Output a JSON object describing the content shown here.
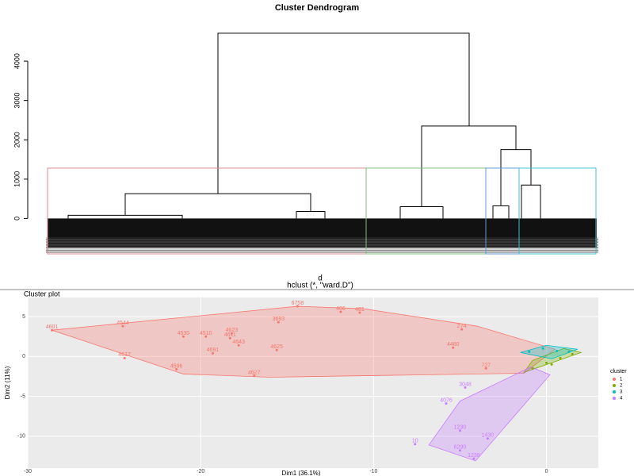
{
  "chart_data": [
    {
      "type": "dendrogram",
      "title": "Cluster Dendrogram",
      "xlabel": "d",
      "subtitle": "hclust (*, \"ward.D\")",
      "ylim": [
        -900,
        4950
      ],
      "yticks": [
        0,
        1000,
        2000,
        3000,
        4000
      ],
      "merge_heights": [
        4710,
        630,
        2350,
        1750,
        300,
        320,
        850,
        80,
        180
      ],
      "cut_height": 1280,
      "cluster_colors": [
        "#d98c8c",
        "#7fbf7f",
        "#5b9bd5",
        "#40c0d0"
      ]
    },
    {
      "type": "cluster",
      "title": "Cluster plot",
      "xlabel": "Dim1 (36.1%)",
      "ylabel": "Dim2 (11%)",
      "xlim": [
        -30,
        3
      ],
      "ylim": [
        -14,
        7.4
      ],
      "xticks": [
        -30,
        -20,
        -10,
        0
      ],
      "yticks": [
        -10,
        -5,
        0,
        5
      ],
      "grid": true,
      "legend_title": "cluster",
      "legend": "right",
      "series": [
        {
          "name": "1",
          "color": "#f8766d",
          "hull_x": [
            -28.6,
            -14.4,
            -10.6,
            -4,
            0.5,
            -1.3,
            -16,
            -21
          ],
          "hull_y": [
            3.3,
            6.3,
            6.0,
            3.8,
            0.9,
            -2.1,
            -2.6,
            -2.2
          ],
          "x": [
            -28.6,
            -24.5,
            -14.4,
            -11.9,
            -10.8,
            -15.5,
            -21,
            -19.7,
            -18.2,
            -18.3,
            -17.8,
            -24.4,
            -21.4,
            -16.9,
            -19.3,
            -15.6,
            -3.5,
            -4.9,
            -5.4
          ],
          "y": [
            3.3,
            3.8,
            6.3,
            5.6,
            5.5,
            4.3,
            2.5,
            2.5,
            2.9,
            2.3,
            1.4,
            -0.2,
            -1.6,
            -2.4,
            0.4,
            0.8,
            -1.5,
            3.4,
            1.1
          ],
          "labels": [
            "4601",
            "4544",
            "6758",
            "406",
            "481",
            "3693",
            "4530",
            "4510",
            "4623",
            "4611",
            "4643",
            "4617",
            "4596",
            "4627",
            "4691",
            "4625",
            "727",
            "274",
            "4480"
          ]
        },
        {
          "name": "2",
          "color": "#7cae00",
          "hull_x": [
            -1.3,
            2,
            1,
            -0.8
          ],
          "hull_y": [
            -2,
            0.5,
            1,
            -0.5
          ],
          "x": [
            -0.8,
            0,
            0.8,
            1.5,
            0.3
          ],
          "y": [
            -1.5,
            -0.8,
            -0.2,
            0.3,
            -1.0
          ]
        },
        {
          "name": "3",
          "color": "#00bfc4",
          "hull_x": [
            -1.5,
            0,
            1.8,
            0.3
          ],
          "hull_y": [
            0.5,
            1.4,
            0.9,
            -0.3
          ],
          "x": [
            -1,
            -0.2,
            0.6,
            1.3
          ],
          "y": [
            0.6,
            1.0,
            0.7,
            0.6
          ]
        },
        {
          "name": "4",
          "color": "#c77cff",
          "hull_x": [
            -6.8,
            -4.1,
            0.2,
            -0.9,
            -5
          ],
          "hull_y": [
            -11.1,
            -13.1,
            -2.3,
            -1.3,
            -5.6
          ],
          "x": [
            -4.7,
            -5.8,
            -5,
            -3.4,
            -5,
            -4.2,
            -7.6
          ],
          "y": [
            -3.9,
            -5.9,
            -9.3,
            -10.3,
            -11.8,
            -12.8,
            -11
          ],
          "labels": [
            "3048",
            "4076",
            "1230",
            "1430",
            "6290",
            "1238",
            "10"
          ]
        }
      ]
    }
  ]
}
